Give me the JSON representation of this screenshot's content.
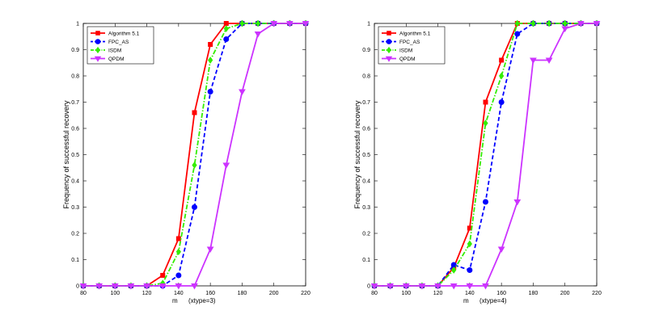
{
  "chart_data": [
    {
      "type": "line",
      "title": "",
      "xlabel": "m      (xtype=3)",
      "ylabel": "Frequency of successful recovery",
      "xlim": [
        80,
        220
      ],
      "ylim": [
        0,
        1
      ],
      "xticks": [
        80,
        100,
        120,
        140,
        160,
        180,
        200,
        220
      ],
      "yticks": [
        0,
        0.1,
        0.2,
        0.3,
        0.4,
        0.5,
        0.6,
        0.7,
        0.8,
        0.9,
        1
      ],
      "legend_position": "top-left",
      "grid": false,
      "x": [
        80,
        90,
        100,
        110,
        120,
        130,
        140,
        150,
        160,
        170,
        180,
        190,
        200,
        210,
        220
      ],
      "series": [
        {
          "name": "Algorithm 5.1",
          "color": "#ff0000",
          "dash": "solid",
          "marker": "square",
          "values": [
            0,
            0,
            0,
            0,
            0,
            0.04,
            0.18,
            0.66,
            0.92,
            1,
            1,
            1,
            1,
            1,
            1
          ]
        },
        {
          "name": "FPC_AS",
          "color": "#0000ff",
          "dash": "dashed",
          "marker": "circle",
          "values": [
            0,
            0,
            0,
            0,
            0,
            0,
            0.04,
            0.3,
            0.74,
            0.94,
            1,
            1,
            1,
            1,
            1
          ]
        },
        {
          "name": "ISDM",
          "color": "#33ee00",
          "dash": "dashdot",
          "marker": "diamond",
          "values": [
            0,
            0,
            0,
            0,
            0,
            0.01,
            0.13,
            0.46,
            0.86,
            0.98,
            1,
            1,
            1,
            1,
            1
          ]
        },
        {
          "name": "QPDM",
          "color": "#cc33ff",
          "dash": "solid",
          "marker": "triangle-down",
          "values": [
            0,
            0,
            0,
            0,
            0,
            0,
            0,
            0,
            0.14,
            0.46,
            0.74,
            0.96,
            1,
            1,
            1
          ]
        }
      ]
    },
    {
      "type": "line",
      "title": "",
      "xlabel": "m      (xtype=4)",
      "ylabel": "Frequency of successful recovery",
      "xlim": [
        80,
        220
      ],
      "ylim": [
        0,
        1
      ],
      "xticks": [
        80,
        100,
        120,
        140,
        160,
        180,
        200,
        220
      ],
      "yticks": [
        0,
        0.1,
        0.2,
        0.3,
        0.4,
        0.5,
        0.6,
        0.7,
        0.8,
        0.9,
        1
      ],
      "legend_position": "top-left",
      "grid": false,
      "x": [
        80,
        90,
        100,
        110,
        120,
        130,
        140,
        150,
        160,
        170,
        180,
        190,
        200,
        210,
        220
      ],
      "series": [
        {
          "name": "Algorithm 5.1",
          "color": "#ff0000",
          "dash": "solid",
          "marker": "square",
          "values": [
            0,
            0,
            0,
            0,
            0,
            0.07,
            0.22,
            0.7,
            0.86,
            1,
            1,
            1,
            1,
            1,
            1
          ]
        },
        {
          "name": "FPC_AS",
          "color": "#0000ff",
          "dash": "dashed",
          "marker": "circle",
          "values": [
            0,
            0,
            0,
            0,
            0,
            0.08,
            0.06,
            0.32,
            0.7,
            0.96,
            1,
            1,
            1,
            1,
            1
          ]
        },
        {
          "name": "ISDM",
          "color": "#33ee00",
          "dash": "dashdot",
          "marker": "diamond",
          "values": [
            0,
            0,
            0,
            0,
            0,
            0.06,
            0.16,
            0.62,
            0.8,
            1,
            1,
            1,
            1,
            1,
            1
          ]
        },
        {
          "name": "QPDM",
          "color": "#cc33ff",
          "dash": "solid",
          "marker": "triangle-down",
          "values": [
            0,
            0,
            0,
            0,
            0,
            0,
            0,
            0,
            0.14,
            0.32,
            0.86,
            0.86,
            0.98,
            1,
            1
          ]
        }
      ]
    }
  ]
}
